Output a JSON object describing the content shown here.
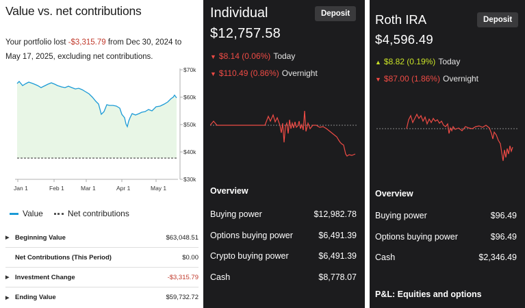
{
  "left_panel": {
    "title": "Value vs. net contributions",
    "summary_prefix": "Your portfolio lost ",
    "summary_loss": "-$3,315.79",
    "summary_suffix": " from Dec 30, 2024 to May 17, 2025, excluding net contributions.",
    "chart": {
      "y_ticks": [
        "$70k",
        "$60k",
        "$50k",
        "$40k",
        "$30k"
      ],
      "x_ticks": [
        "Jan 1",
        "Feb 1",
        "Mar 1",
        "Apr 1",
        "May 1"
      ],
      "colors": {
        "value_line": "#1b9ad6",
        "value_fill": "#e8f6e6",
        "net_line": "#555555"
      }
    },
    "legend": {
      "value_label": "Value",
      "net_label": "Net contributions"
    },
    "rows": [
      {
        "label": "Beginning Value",
        "value": "$63,048.51",
        "expandable": true,
        "negative": false
      },
      {
        "label": "Net Contributions (This Period)",
        "value": "$0.00",
        "expandable": false,
        "negative": false
      },
      {
        "label": "Investment Change",
        "value": "-$3,315.79",
        "expandable": true,
        "negative": true
      },
      {
        "label": "Ending Value",
        "value": "$59,732.72",
        "expandable": true,
        "negative": false
      }
    ]
  },
  "individual": {
    "title": "Individual",
    "deposit_label": "Deposit",
    "value": "$12,757.58",
    "today": {
      "arrow": "▼",
      "amount": "$8.14 (0.06%)",
      "label": "Today"
    },
    "overnight": {
      "arrow": "▼",
      "amount": "$110.49 (0.86%)",
      "label": "Overnight"
    },
    "overview_title": "Overview",
    "overview": [
      {
        "label": "Buying power",
        "value": "$12,982.78"
      },
      {
        "label": "Options buying power",
        "value": "$6,491.39"
      },
      {
        "label": "Crypto buying power",
        "value": "$6,491.39"
      },
      {
        "label": "Cash",
        "value": "$8,778.07"
      }
    ]
  },
  "roth": {
    "title": "Roth IRA",
    "deposit_label": "Deposit",
    "value": "$4,596.49",
    "today": {
      "arrow": "▲",
      "amount": "$8.82 (0.19%)",
      "label": "Today"
    },
    "overnight": {
      "arrow": "▼",
      "amount": "$87.00 (1.86%)",
      "label": "Overnight"
    },
    "overview_title": "Overview",
    "overview": [
      {
        "label": "Buying power",
        "value": "$96.49"
      },
      {
        "label": "Options buying power",
        "value": "$96.49"
      },
      {
        "label": "Cash",
        "value": "$2,346.49"
      }
    ],
    "pl_title": "P&L: Equities and options"
  },
  "colors": {
    "loss": "#ef4b45",
    "gain": "#c9e227",
    "panel_bg": "#1c1c1e"
  }
}
